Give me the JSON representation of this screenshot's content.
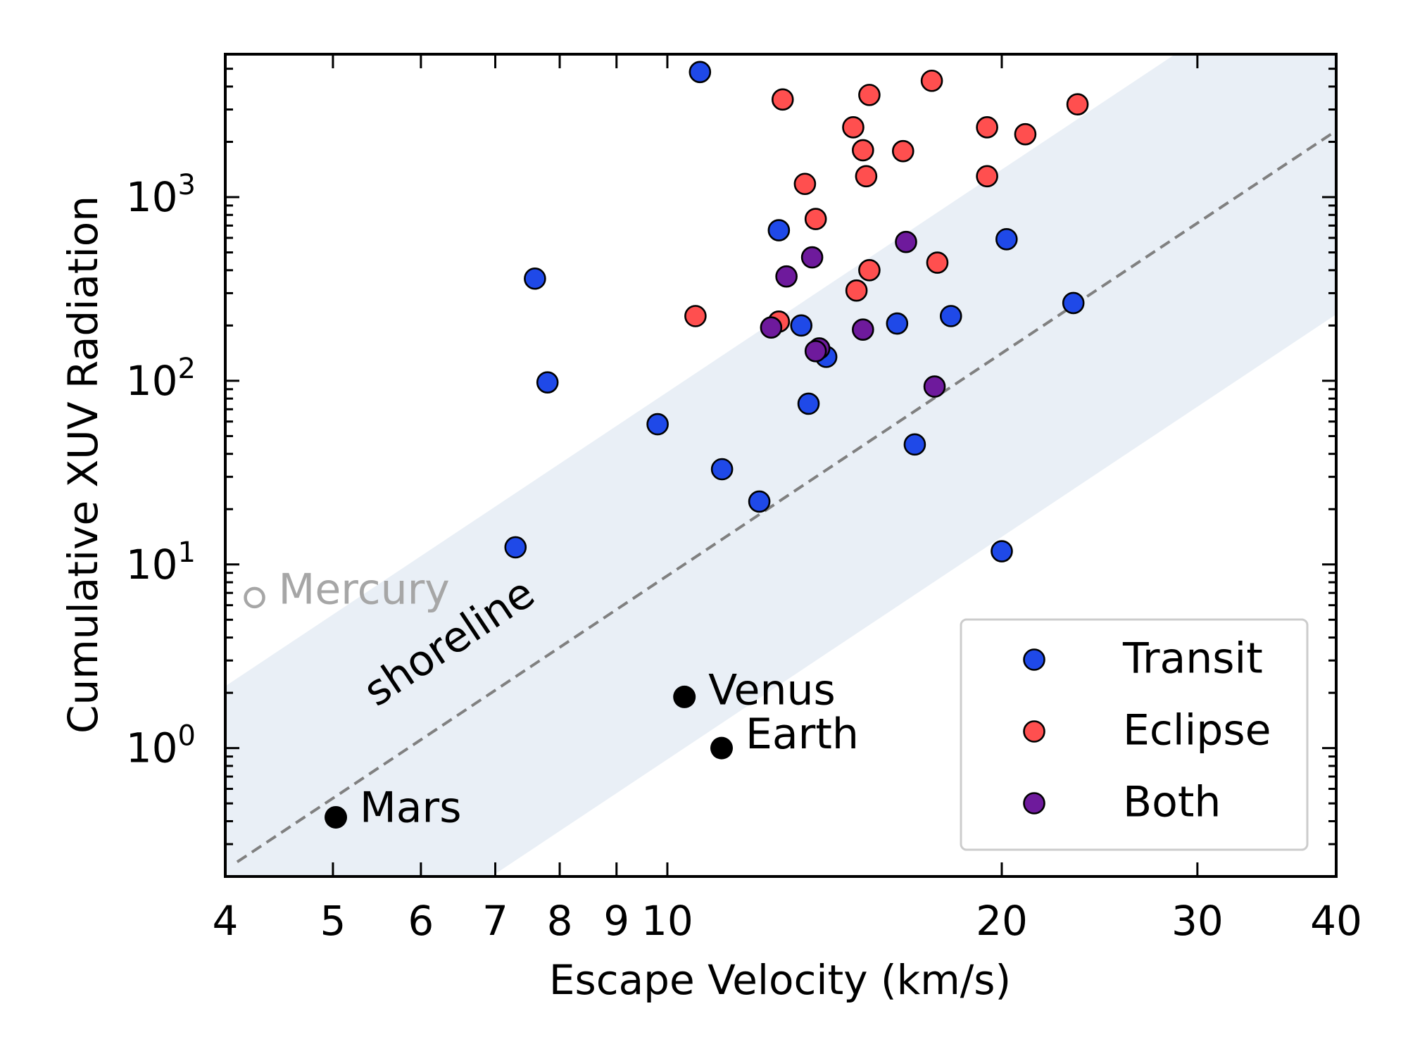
{
  "chart_data": {
    "type": "scatter",
    "xlabel": "Escape Velocity (km/s)",
    "ylabel": "Cumulative XUV Radiation",
    "x_scale": "log",
    "y_scale": "log",
    "xlim": [
      4,
      40
    ],
    "ylim": [
      0.2,
      6000
    ],
    "x_ticks": [
      4,
      5,
      6,
      7,
      8,
      9,
      10,
      20,
      30,
      40
    ],
    "x_tick_labels": [
      "4",
      "5",
      "6",
      "7",
      "8",
      "9",
      "10",
      "20",
      "30",
      "40"
    ],
    "y_ticks": [
      1,
      10,
      100,
      1000
    ],
    "y_tick_labels": [
      {
        "base": "10",
        "exp": "0"
      },
      {
        "base": "10",
        "exp": "1"
      },
      {
        "base": "10",
        "exp": "2"
      },
      {
        "base": "10",
        "exp": "3"
      }
    ],
    "grid": false,
    "legend_position": "lower-right",
    "shoreline": {
      "label": "shoreline",
      "line_color": "#808080",
      "band_color": "#e9eff6",
      "band_factor": 10,
      "line_points": [
        [
          4.1,
          0.24
        ],
        [
          40,
          2300
        ]
      ]
    },
    "series": [
      {
        "name": "Transit",
        "color": "#1f49e8",
        "points": [
          [
            10.7,
            4800
          ],
          [
            7.6,
            360
          ],
          [
            7.8,
            98
          ],
          [
            9.8,
            58
          ],
          [
            7.3,
            12.4
          ],
          [
            11.2,
            33
          ],
          [
            12.1,
            22
          ],
          [
            12.6,
            660
          ],
          [
            13.2,
            200
          ],
          [
            13.4,
            75
          ],
          [
            13.9,
            135
          ],
          [
            16.1,
            205
          ],
          [
            16.7,
            45
          ],
          [
            18.0,
            225
          ],
          [
            20.2,
            590
          ],
          [
            20.0,
            11.8
          ],
          [
            23.2,
            265
          ]
        ]
      },
      {
        "name": "Eclipse",
        "color": "#ff4f4f",
        "points": [
          [
            12.7,
            3400
          ],
          [
            14.7,
            2400
          ],
          [
            15.2,
            3600
          ],
          [
            15.0,
            1800
          ],
          [
            15.1,
            1300
          ],
          [
            16.3,
            1780
          ],
          [
            17.3,
            4300
          ],
          [
            19.4,
            2400
          ],
          [
            19.4,
            1300
          ],
          [
            21.0,
            2200
          ],
          [
            23.4,
            3200
          ],
          [
            13.3,
            1180
          ],
          [
            13.6,
            760
          ],
          [
            15.2,
            400
          ],
          [
            14.8,
            310
          ],
          [
            17.5,
            440
          ],
          [
            10.6,
            225
          ],
          [
            12.6,
            210
          ]
        ]
      },
      {
        "name": "Both",
        "color": "#6e1a9c",
        "points": [
          [
            12.8,
            370
          ],
          [
            12.4,
            195
          ],
          [
            13.5,
            470
          ],
          [
            13.7,
            150
          ],
          [
            13.6,
            145
          ],
          [
            15.0,
            190
          ],
          [
            16.4,
            570
          ],
          [
            17.4,
            93
          ]
        ]
      }
    ],
    "solar_system": [
      {
        "name": "Mercury",
        "x": 4.25,
        "y": 6.6,
        "color": "#a6a6a6",
        "hollow": true
      },
      {
        "name": "Venus",
        "x": 10.36,
        "y": 1.9,
        "color": "#000000",
        "hollow": false
      },
      {
        "name": "Earth",
        "x": 11.19,
        "y": 1.0,
        "color": "#000000",
        "hollow": false
      },
      {
        "name": "Mars",
        "x": 5.03,
        "y": 0.42,
        "color": "#000000",
        "hollow": false
      }
    ]
  }
}
